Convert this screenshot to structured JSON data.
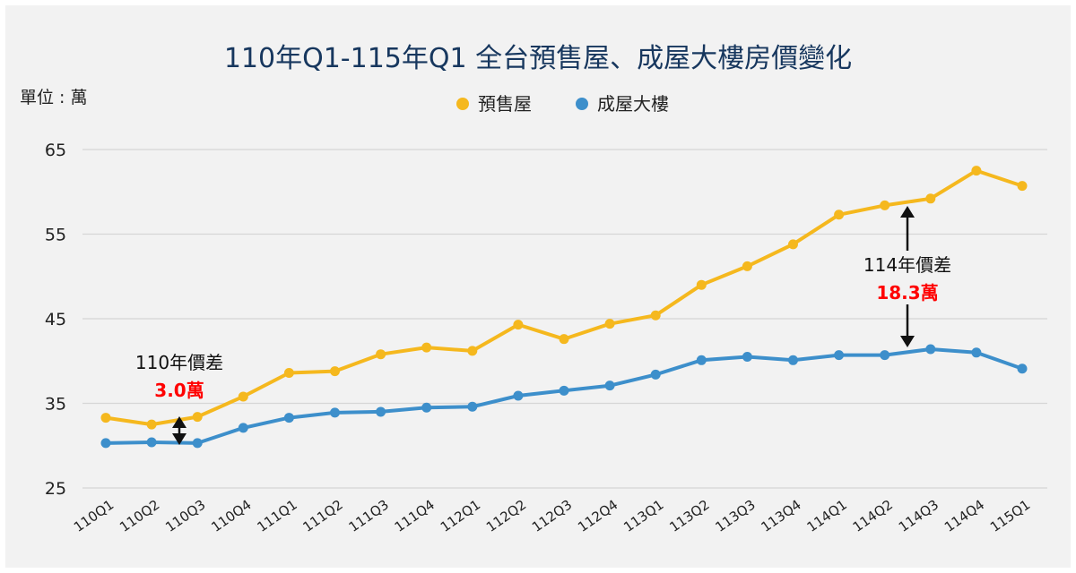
{
  "page": {
    "title": "110年Q1-115年Q1 全台預售屋、成屋大樓房價變化",
    "unit_label": "單位 : 萬"
  },
  "annotations": {
    "left": {
      "label": "110年價差",
      "value": "3.0萬"
    },
    "right": {
      "label": "114年價差",
      "value": "18.3萬"
    }
  },
  "colors": {
    "presale": "#f5b81e",
    "existing": "#3d8fcb",
    "grid": "#d6d6d6",
    "highlight": "#ff0000",
    "title": "#17375e"
  },
  "chart_data": {
    "type": "line",
    "title": "110年Q1-115年Q1 全台預售屋、成屋大樓房價變化",
    "ylabel": "單位 : 萬",
    "ylim": [
      25,
      65
    ],
    "yticks": [
      25,
      35,
      45,
      55,
      65
    ],
    "grid": true,
    "legend": "top-center",
    "categories": [
      "110Q1",
      "110Q2",
      "110Q3",
      "110Q4",
      "111Q1",
      "111Q2",
      "111Q3",
      "111Q4",
      "112Q1",
      "112Q2",
      "112Q3",
      "112Q4",
      "113Q1",
      "113Q2",
      "113Q3",
      "113Q4",
      "114Q1",
      "114Q2",
      "114Q3",
      "114Q4",
      "115Q1"
    ],
    "series": [
      {
        "name": "預售屋",
        "values": [
          33.3,
          32.5,
          33.4,
          35.8,
          38.6,
          38.8,
          40.8,
          41.6,
          41.2,
          44.3,
          42.6,
          44.4,
          45.4,
          49.0,
          51.2,
          53.8,
          57.3,
          58.4,
          59.2,
          62.5,
          60.7
        ]
      },
      {
        "name": "成屋大樓",
        "values": [
          30.3,
          30.4,
          30.3,
          32.1,
          33.3,
          33.9,
          34.0,
          34.5,
          34.6,
          35.9,
          36.5,
          37.1,
          38.4,
          40.1,
          40.5,
          40.1,
          40.7,
          40.7,
          41.4,
          41.0,
          39.1
        ]
      }
    ]
  }
}
